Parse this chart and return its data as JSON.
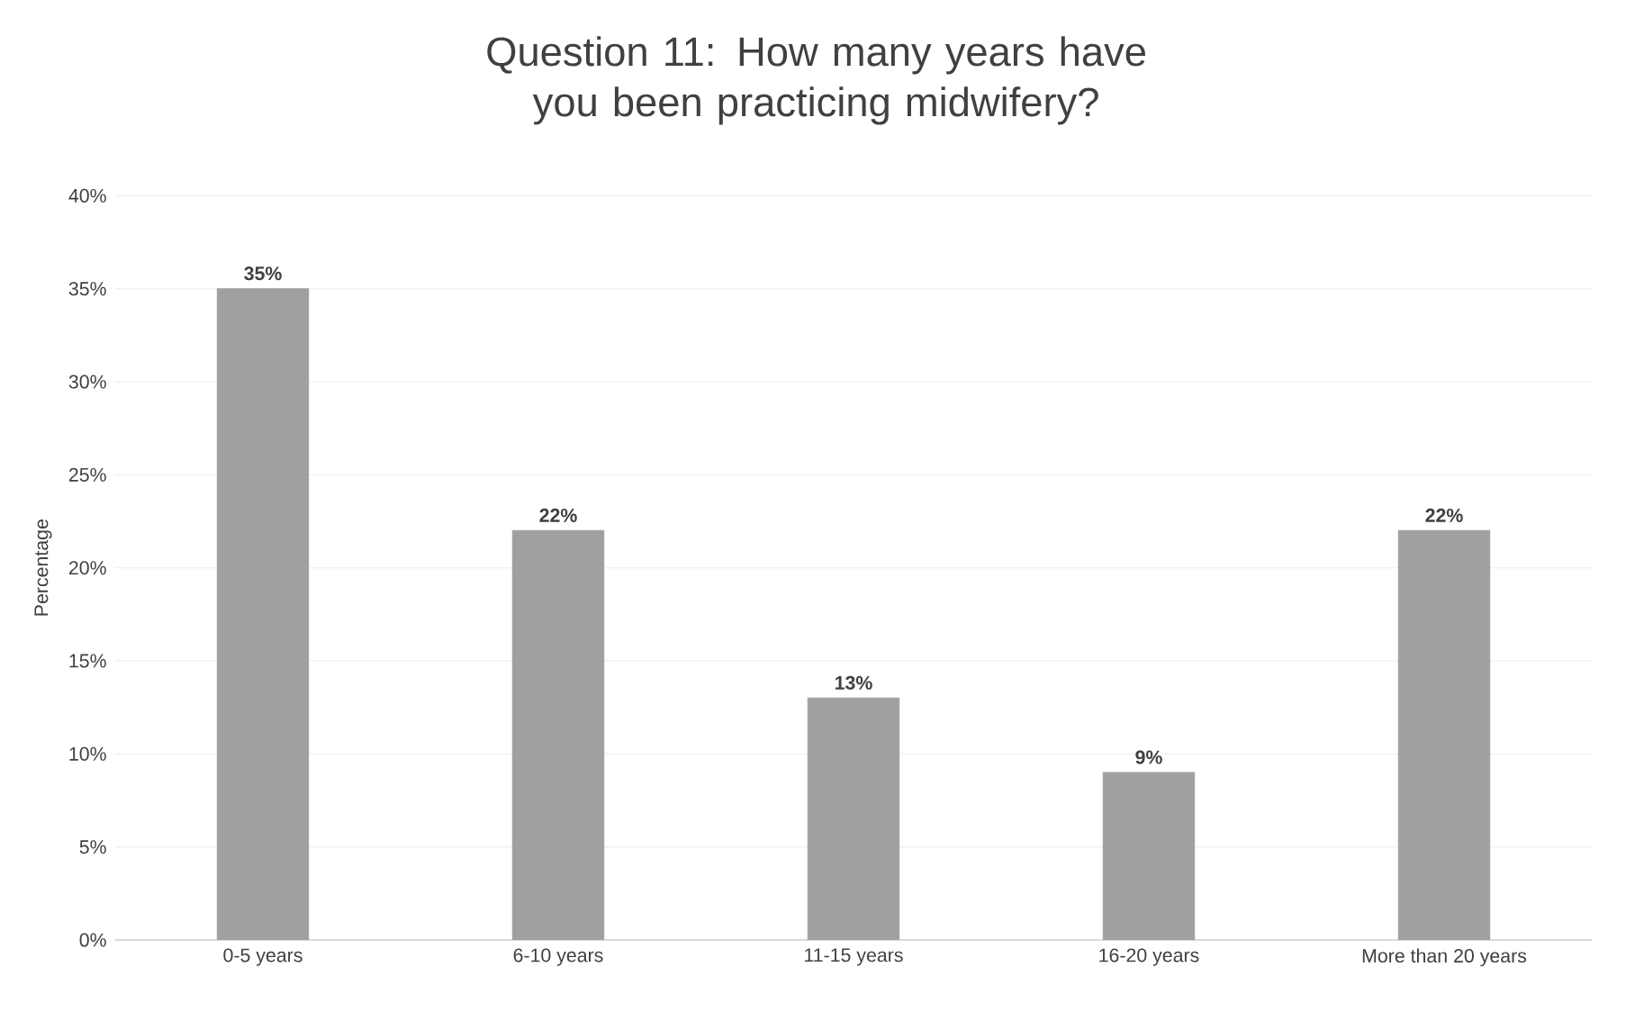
{
  "chart_data": {
    "type": "bar",
    "title": "Question 11: How many years have you been practicing midwifery?",
    "ylabel": "Percentage",
    "categories": [
      "0-5 years",
      "6-10 years",
      "11-15 years",
      "16-20 years",
      "More than 20 years"
    ],
    "values": [
      35,
      22,
      13,
      9,
      22
    ],
    "value_labels": [
      "35%",
      "22%",
      "13%",
      "9%",
      "22%"
    ],
    "color": "#a0a0a0",
    "ylim": [
      0,
      40
    ],
    "yticks": [
      {
        "value": 0,
        "label": "0%"
      },
      {
        "value": 5,
        "label": "5%"
      },
      {
        "value": 10,
        "label": "10%"
      },
      {
        "value": 15,
        "label": "15%"
      },
      {
        "value": 20,
        "label": "20%"
      },
      {
        "value": 25,
        "label": "25%"
      },
      {
        "value": 30,
        "label": "30%"
      },
      {
        "value": 35,
        "label": "35%"
      },
      {
        "value": 40,
        "label": "40%"
      }
    ],
    "grid": "y"
  }
}
